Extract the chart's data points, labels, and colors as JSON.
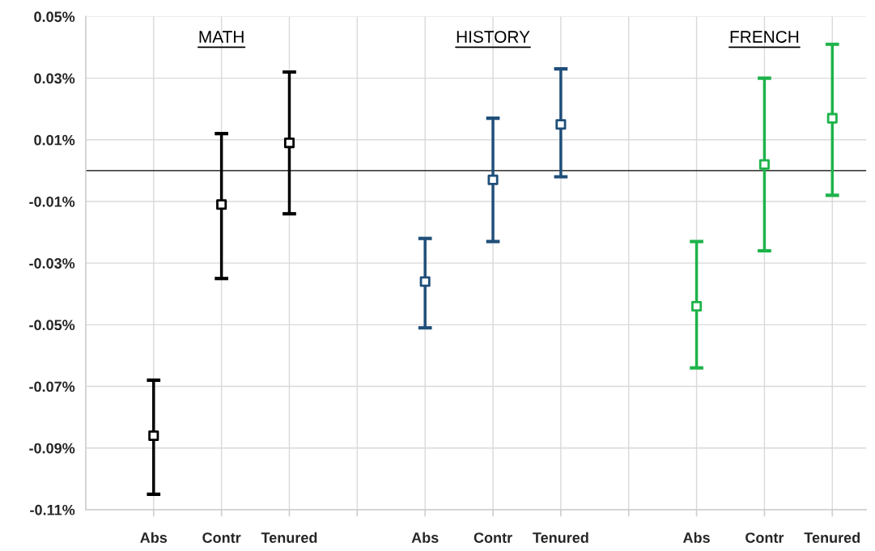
{
  "chart_data": {
    "type": "scatter",
    "categories": [
      "Abs",
      "Contr",
      "Tenured",
      null,
      "Abs",
      "Contr",
      "Tenured",
      null,
      "Abs",
      "Contr",
      "Tenured"
    ],
    "series": [
      {
        "color": "#000000",
        "values": [
          -0.086,
          -0.011,
          0.009,
          null,
          null,
          null,
          null,
          null,
          null,
          null,
          null
        ],
        "errors": [
          [
            -0.105,
            -0.068
          ],
          [
            -0.035,
            0.012
          ],
          [
            -0.014,
            0.032
          ],
          null,
          null,
          null,
          null,
          null,
          null,
          null,
          null
        ]
      },
      {
        "color": "#1f4e79",
        "values": [
          null,
          null,
          null,
          null,
          -0.036,
          -0.003,
          0.015,
          null,
          null,
          null,
          null
        ],
        "errors": [
          null,
          null,
          null,
          null,
          [
            -0.051,
            -0.022
          ],
          [
            -0.023,
            0.017
          ],
          [
            -0.002,
            0.033
          ],
          null,
          null,
          null,
          null
        ]
      },
      {
        "color": "#1db34a",
        "values": [
          null,
          null,
          null,
          null,
          null,
          null,
          null,
          null,
          -0.044,
          0.002,
          0.017
        ],
        "errors": [
          null,
          null,
          null,
          null,
          null,
          null,
          null,
          null,
          [
            -0.064,
            -0.023
          ],
          [
            -0.026,
            0.03
          ],
          [
            -0.008,
            0.041
          ]
        ]
      }
    ],
    "ylim": [
      -0.11,
      0.05
    ],
    "yticks": [
      {
        "value": 0.05,
        "label": "0.05%"
      },
      {
        "value": 0.03,
        "label": "0.03%"
      },
      {
        "value": 0.01,
        "label": "0.01%"
      },
      {
        "value": -0.01,
        "label": "-0.01%"
      },
      {
        "value": -0.03,
        "label": "-0.03%"
      },
      {
        "value": -0.05,
        "label": "-0.05%"
      },
      {
        "value": -0.07,
        "label": "-0.07%"
      },
      {
        "value": -0.09,
        "label": "-0.09%"
      },
      {
        "value": -0.11,
        "label": "-0.11%"
      }
    ],
    "ref_lines": [
      {
        "axis": "y",
        "value": 0,
        "color": "#000000"
      }
    ],
    "annotations": [
      "MATH",
      "HISTORY",
      "FRENCH"
    ],
    "grid": true,
    "marker": "square"
  }
}
